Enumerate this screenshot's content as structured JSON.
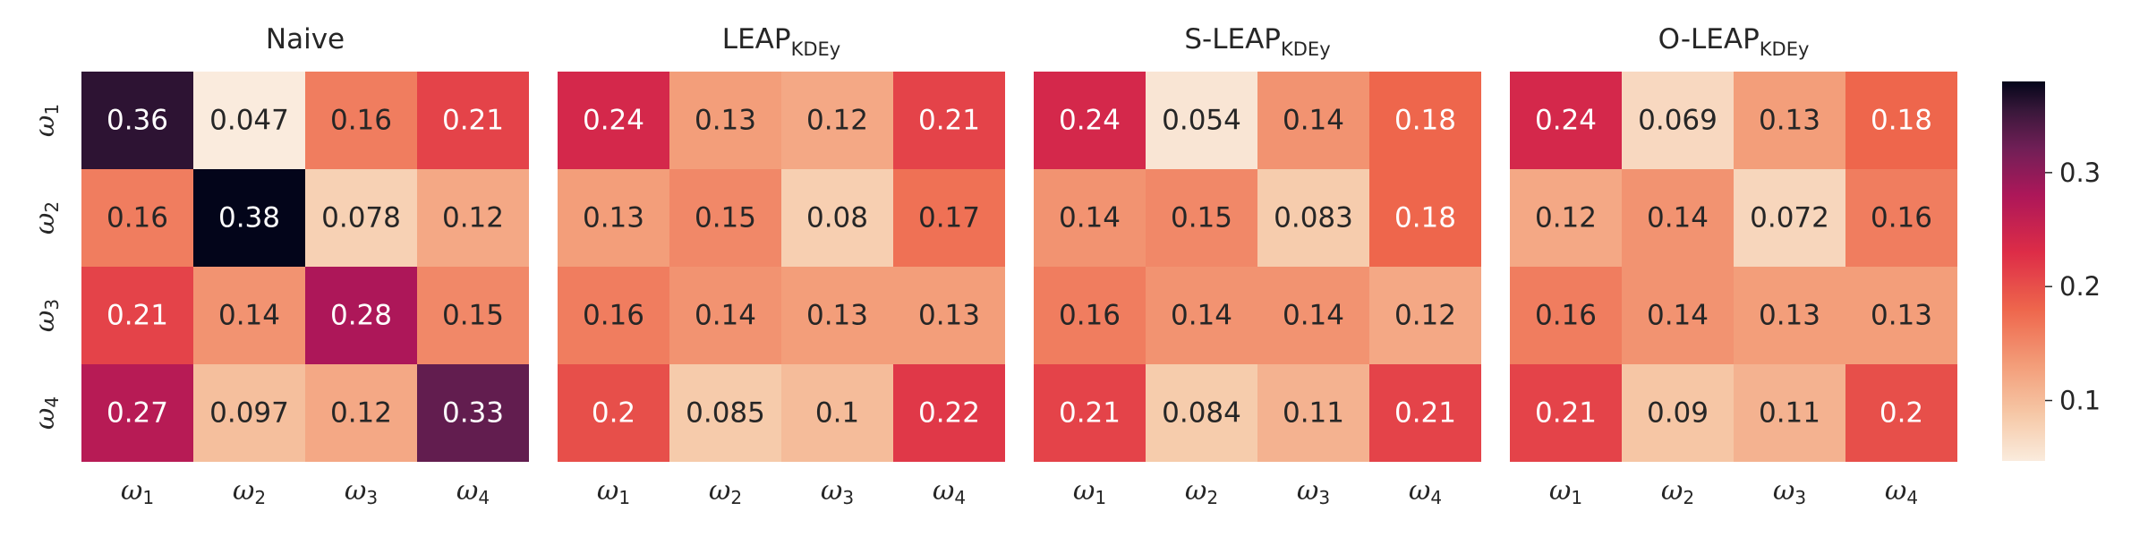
{
  "chart_data": {
    "type": "heatmap",
    "colormap": "rocket_r",
    "vmin": 0.047,
    "vmax": 0.38,
    "row_labels": [
      "ω1",
      "ω2",
      "ω3",
      "ω4"
    ],
    "col_labels": [
      "ω1",
      "ω2",
      "ω3",
      "ω4"
    ],
    "panels": [
      {
        "title": "Naive",
        "title_subscript": "",
        "values": [
          [
            "0.36",
            "0.047",
            "0.16",
            "0.21"
          ],
          [
            "0.16",
            "0.38",
            "0.078",
            "0.12"
          ],
          [
            "0.21",
            "0.14",
            "0.28",
            "0.15"
          ],
          [
            "0.27",
            "0.097",
            "0.12",
            "0.33"
          ]
        ]
      },
      {
        "title": "LEAP",
        "title_subscript": "KDEy",
        "values": [
          [
            "0.24",
            "0.13",
            "0.12",
            "0.21"
          ],
          [
            "0.13",
            "0.15",
            "0.08",
            "0.17"
          ],
          [
            "0.16",
            "0.14",
            "0.13",
            "0.13"
          ],
          [
            "0.2",
            "0.085",
            "0.1",
            "0.22"
          ]
        ]
      },
      {
        "title": "S-LEAP",
        "title_subscript": "KDEy",
        "values": [
          [
            "0.24",
            "0.054",
            "0.14",
            "0.18"
          ],
          [
            "0.14",
            "0.15",
            "0.083",
            "0.18"
          ],
          [
            "0.16",
            "0.14",
            "0.14",
            "0.12"
          ],
          [
            "0.21",
            "0.084",
            "0.11",
            "0.21"
          ]
        ]
      },
      {
        "title": "O-LEAP",
        "title_subscript": "KDEy",
        "values": [
          [
            "0.24",
            "0.069",
            "0.13",
            "0.18"
          ],
          [
            "0.12",
            "0.14",
            "0.072",
            "0.16"
          ],
          [
            "0.16",
            "0.14",
            "0.13",
            "0.13"
          ],
          [
            "0.21",
            "0.09",
            "0.11",
            "0.2"
          ]
        ]
      }
    ],
    "colorbar": {
      "ticks": [
        0.1,
        0.2,
        0.3
      ],
      "tick_labels": [
        "0.1",
        "0.2",
        "0.3"
      ]
    }
  }
}
